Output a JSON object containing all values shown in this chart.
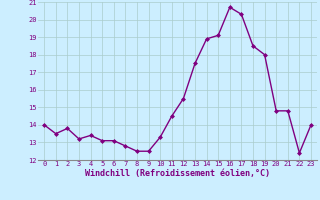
{
  "x": [
    0,
    1,
    2,
    3,
    4,
    5,
    6,
    7,
    8,
    9,
    10,
    11,
    12,
    13,
    14,
    15,
    16,
    17,
    18,
    19,
    20,
    21,
    22,
    23
  ],
  "y": [
    14.0,
    13.5,
    13.8,
    13.2,
    13.4,
    13.1,
    13.1,
    12.8,
    12.5,
    12.5,
    13.3,
    14.5,
    15.5,
    17.5,
    18.9,
    19.1,
    20.7,
    20.3,
    18.5,
    18.0,
    14.8,
    14.8,
    12.4,
    14.0
  ],
  "line_color": "#800080",
  "marker": "D",
  "marker_size": 2.0,
  "bg_color": "#cceeff",
  "grid_color": "#aacccc",
  "xlabel": "Windchill (Refroidissement éolien,°C)",
  "xlabel_color": "#800080",
  "tick_color": "#800080",
  "ylim": [
    12,
    21
  ],
  "xlim": [
    -0.5,
    23.5
  ],
  "yticks": [
    12,
    13,
    14,
    15,
    16,
    17,
    18,
    19,
    20,
    21
  ],
  "xticks": [
    0,
    1,
    2,
    3,
    4,
    5,
    6,
    7,
    8,
    9,
    10,
    11,
    12,
    13,
    14,
    15,
    16,
    17,
    18,
    19,
    20,
    21,
    22,
    23
  ],
  "line_width": 1.0,
  "tick_fontsize": 5.0,
  "xlabel_fontsize": 6.0
}
